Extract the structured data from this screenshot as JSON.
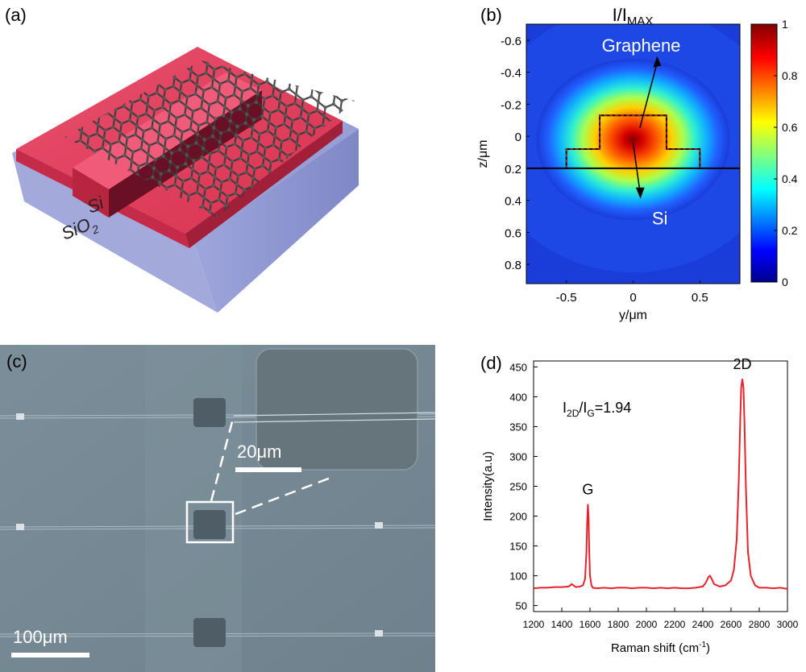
{
  "panels": {
    "a": {
      "label": "(a)",
      "si_label": "Si",
      "sio2_label": "SiO",
      "sio2_sub": "2"
    },
    "b": {
      "label": "(b)",
      "title_main": "I/I",
      "title_sub": "MAX",
      "annotation_graphene": "Graphene",
      "annotation_si": "Si"
    },
    "c": {
      "label": "(c)",
      "scale_main": "100μm",
      "scale_inset": "20μm"
    },
    "d": {
      "label": "(d)",
      "ratio_prefix": "I",
      "ratio_sub1": "2D",
      "ratio_mid": "/I",
      "ratio_sub2": "G",
      "ratio_value": "=1.94"
    }
  },
  "chart_data": [
    {
      "panel": "b",
      "type": "heatmap",
      "title": "I/IMAX",
      "xlabel": "y/μm",
      "ylabel": "z/μm",
      "xticks": [
        "-0.5",
        "0",
        "0.5"
      ],
      "xtick_values": [
        -0.5,
        0,
        0.5
      ],
      "yticks": [
        "-0.6",
        "-0.4",
        "-0.2",
        "0",
        "0.2",
        "0.4",
        "0.6",
        "0.8"
      ],
      "ytick_values": [
        -0.6,
        -0.4,
        -0.2,
        0,
        0.2,
        0.4,
        0.6,
        0.8
      ],
      "xlim": [
        -0.8,
        0.8
      ],
      "ylim": [
        -0.7,
        0.92
      ],
      "y_inverted": true,
      "colorbar": {
        "ticks": [
          "0",
          "0.2",
          "0.4",
          "0.6",
          "0.8",
          "1"
        ],
        "tick_values": [
          0,
          0.2,
          0.4,
          0.6,
          0.8,
          1
        ],
        "range": [
          0,
          1
        ],
        "colormap": "jet"
      },
      "waveguide_outline": {
        "slab_y": [
          -0.5,
          0.5
        ],
        "slab_z": [
          0.08,
          0.2
        ],
        "rib_y": [
          -0.25,
          0.25
        ],
        "rib_z": [
          -0.13,
          0.2
        ],
        "substrate_line_z": 0.2
      },
      "mode_peak": {
        "y": 0,
        "z": 0.02,
        "value": 1.0
      }
    },
    {
      "panel": "d",
      "type": "line",
      "title": "",
      "xlabel": "Raman shift (cm-1)",
      "ylabel": "Intensity(a.u)",
      "xlim": [
        1200,
        3000
      ],
      "ylim": [
        40,
        460
      ],
      "xticks": [
        "1200",
        "1400",
        "1600",
        "1800",
        "2000",
        "2200",
        "2400",
        "2600",
        "2800",
        "3000"
      ],
      "xtick_values": [
        1200,
        1400,
        1600,
        1800,
        2000,
        2200,
        2400,
        2600,
        2800,
        3000
      ],
      "yticks": [
        "50",
        "100",
        "150",
        "200",
        "250",
        "300",
        "350",
        "400",
        "450"
      ],
      "ytick_values": [
        50,
        100,
        150,
        200,
        250,
        300,
        350,
        400,
        450
      ],
      "color": "#e8222a",
      "peak_labels": [
        {
          "text": "G",
          "x": 1585,
          "y": 220
        },
        {
          "text": "2D",
          "x": 2680,
          "y": 430
        }
      ],
      "series": [
        {
          "x": [
            1200,
            1250,
            1300,
            1350,
            1400,
            1450,
            1470,
            1500,
            1530,
            1550,
            1565,
            1575,
            1580,
            1585,
            1590,
            1595,
            1600,
            1610,
            1620,
            1650,
            1700,
            1750,
            1800,
            1850,
            1900,
            1950,
            2000,
            2050,
            2100,
            2150,
            2200,
            2250,
            2300,
            2350,
            2400,
            2420,
            2440,
            2450,
            2460,
            2480,
            2520,
            2560,
            2600,
            2620,
            2640,
            2655,
            2665,
            2672,
            2680,
            2688,
            2695,
            2705,
            2720,
            2740,
            2770,
            2800,
            2850,
            2900,
            2950,
            3000
          ],
          "y": [
            79,
            80,
            80,
            81,
            81,
            82,
            86,
            81,
            82,
            84,
            95,
            140,
            190,
            220,
            195,
            140,
            100,
            84,
            80,
            79,
            80,
            79,
            80,
            80,
            79,
            80,
            80,
            79,
            80,
            79,
            80,
            79,
            79,
            80,
            82,
            88,
            98,
            100,
            96,
            86,
            82,
            84,
            92,
            110,
            160,
            260,
            360,
            415,
            430,
            415,
            360,
            250,
            140,
            100,
            84,
            80,
            80,
            79,
            80,
            78
          ]
        }
      ]
    }
  ]
}
